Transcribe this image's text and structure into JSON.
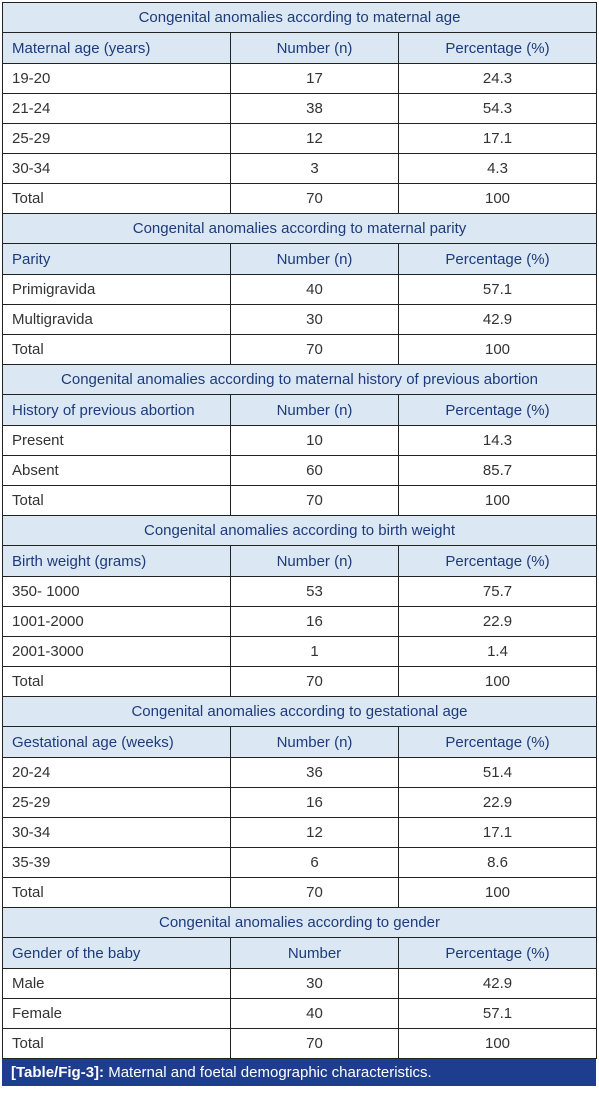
{
  "sections": [
    {
      "title": "Congenital anomalies according to maternal age",
      "headers": [
        "Maternal age (years)",
        "Number (n)",
        "Percentage (%)"
      ],
      "rows": [
        [
          "19-20",
          "17",
          "24.3"
        ],
        [
          "21-24",
          "38",
          "54.3"
        ],
        [
          "25-29",
          "12",
          "17.1"
        ],
        [
          "30-34",
          "3",
          "4.3"
        ],
        [
          "Total",
          "70",
          "100"
        ]
      ]
    },
    {
      "title": "Congenital anomalies according to maternal parity",
      "headers": [
        "Parity",
        "Number (n)",
        "Percentage (%)"
      ],
      "rows": [
        [
          "Primigravida",
          "40",
          "57.1"
        ],
        [
          "Multigravida",
          "30",
          "42.9"
        ],
        [
          "Total",
          "70",
          "100"
        ]
      ]
    },
    {
      "title": "Congenital anomalies according to maternal history of previous abortion",
      "headers": [
        "History of previous abortion",
        "Number (n)",
        "Percentage (%)"
      ],
      "rows": [
        [
          "Present",
          "10",
          "14.3"
        ],
        [
          "Absent",
          "60",
          "85.7"
        ],
        [
          "Total",
          "70",
          "100"
        ]
      ]
    },
    {
      "title": "Congenital anomalies according to birth weight",
      "headers": [
        "Birth weight (grams)",
        "Number (n)",
        "Percentage (%)"
      ],
      "rows": [
        [
          "350- 1000",
          "53",
          "75.7"
        ],
        [
          "1001-2000",
          "16",
          "22.9"
        ],
        [
          "2001-3000",
          "1",
          "1.4"
        ],
        [
          "Total",
          "70",
          "100"
        ]
      ]
    },
    {
      "title": "Congenital anomalies according to gestational age",
      "headers": [
        "Gestational age (weeks)",
        "Number (n)",
        "Percentage (%)"
      ],
      "rows": [
        [
          "20-24",
          "36",
          "51.4"
        ],
        [
          "25-29",
          "16",
          "22.9"
        ],
        [
          "30-34",
          "12",
          "17.1"
        ],
        [
          "35-39",
          "6",
          "8.6"
        ],
        [
          "Total",
          "70",
          "100"
        ]
      ]
    },
    {
      "title": "Congenital anomalies according to gender",
      "headers": [
        "Gender of the baby",
        "Number",
        "Percentage (%)"
      ],
      "rows": [
        [
          "Male",
          "30",
          "42.9"
        ],
        [
          "Female",
          "40",
          "57.1"
        ],
        [
          "Total",
          "70",
          "100"
        ]
      ]
    }
  ],
  "caption": {
    "label": "[Table/Fig-3]:",
    "text": " Maternal and foetal demographic characteristics."
  }
}
